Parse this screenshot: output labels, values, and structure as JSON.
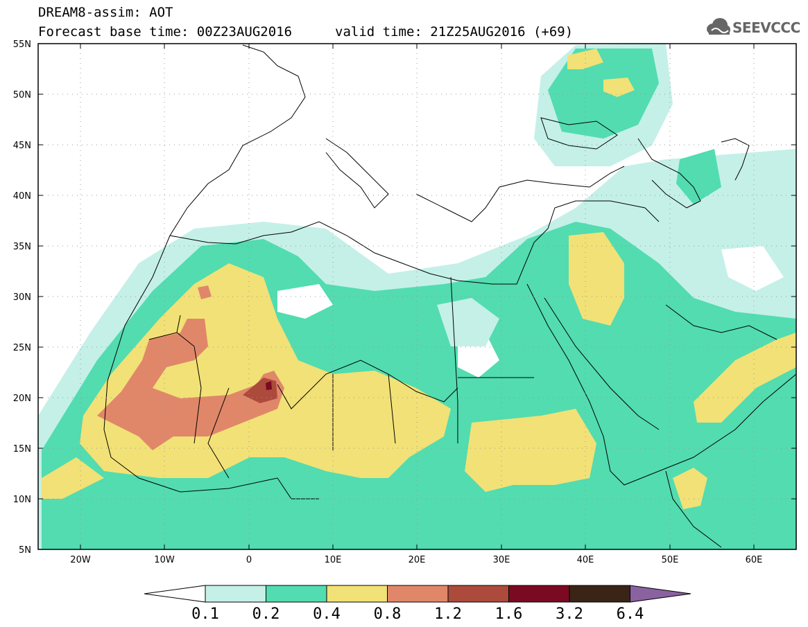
{
  "header": {
    "line1": "DREAM8-assim: AOT",
    "line2": "Forecast base time: 00Z23AUG2016",
    "valid": "valid time: 21Z25AUG2016 (+69)",
    "logo_text": "SEEVCCC"
  },
  "map": {
    "lat_labels": [
      "55N",
      "50N",
      "45N",
      "40N",
      "35N",
      "30N",
      "25N",
      "20N",
      "15N",
      "10N",
      "5N"
    ],
    "lon_labels": [
      "20W",
      "10W",
      "0",
      "10E",
      "20E",
      "30E",
      "40E",
      "50E",
      "60E"
    ],
    "extent": {
      "lon_min": -25,
      "lon_max": 65,
      "lat_min": 5,
      "lat_max": 55
    }
  },
  "colorbar": {
    "thresholds": [
      "0.1",
      "0.2",
      "0.4",
      "0.8",
      "1.2",
      "1.6",
      "3.2",
      "6.4"
    ],
    "colors": [
      "#ffffff",
      "#c4f0e8",
      "#52dcb0",
      "#f2e176",
      "#e0876a",
      "#ac4a3c",
      "#7a0a22",
      "#3a2416",
      "#8a62a0"
    ]
  }
}
